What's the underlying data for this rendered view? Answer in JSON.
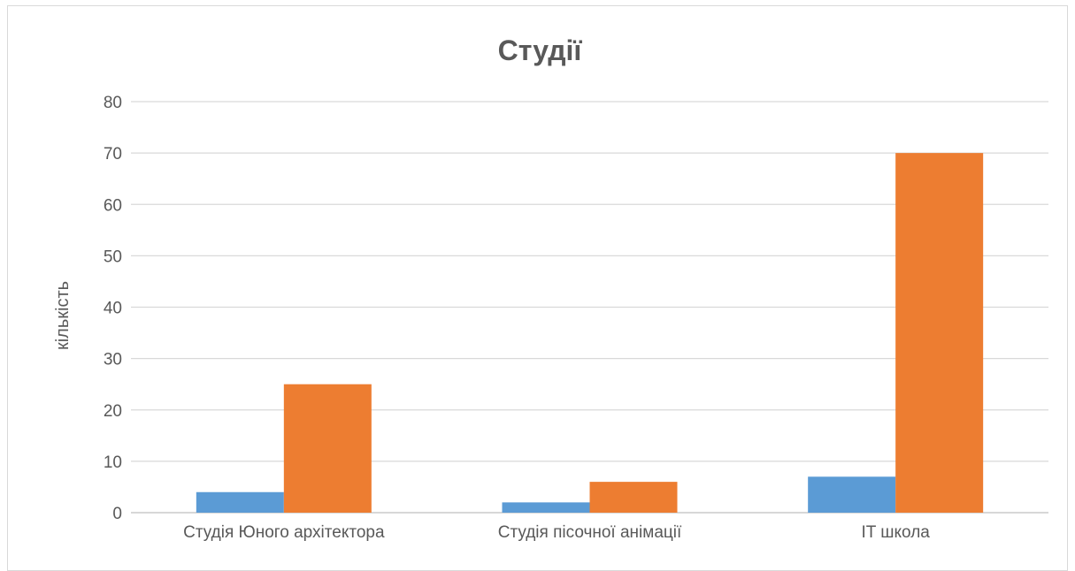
{
  "chart_data": {
    "type": "bar",
    "title": "Студії",
    "xlabel": "",
    "ylabel": "кількість",
    "ylim": [
      0,
      80
    ],
    "yticks": [
      0,
      10,
      20,
      30,
      40,
      50,
      60,
      70,
      80
    ],
    "grid": true,
    "categories": [
      "Студія Юного архітектора",
      "Студія пісочної анімації",
      "IT школа"
    ],
    "series": [
      {
        "values": [
          4,
          2,
          7
        ],
        "color": "#5b9bd5"
      },
      {
        "values": [
          25,
          6,
          70
        ],
        "color": "#ed7d31"
      }
    ]
  }
}
